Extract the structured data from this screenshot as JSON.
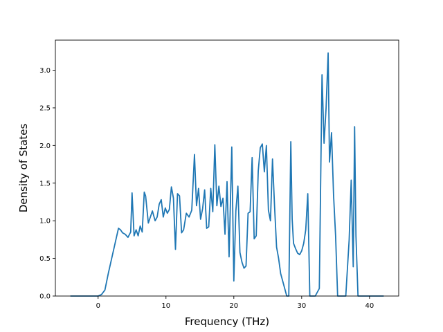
{
  "chart_data": {
    "type": "line",
    "title": "",
    "xlabel": "Frequency (THz)",
    "ylabel": "Density of States",
    "xlim": [
      -6.3,
      44.3
    ],
    "ylim": [
      0.0,
      3.4
    ],
    "xticks": [
      0,
      10,
      20,
      30,
      40
    ],
    "xtick_labels": [
      "0",
      "10",
      "20",
      "30",
      "40"
    ],
    "yticks": [
      0.0,
      0.5,
      1.0,
      1.5,
      2.0,
      2.5,
      3.0
    ],
    "ytick_labels": [
      "0.0",
      "0.5",
      "1.0",
      "1.5",
      "2.0",
      "2.5",
      "3.0"
    ],
    "grid": false,
    "line_color": "#1f77b4",
    "series": [
      {
        "x": [
          -4.0,
          0.0,
          0.5,
          1.0,
          1.5,
          2.0,
          2.5,
          3.0,
          3.3,
          3.6,
          4.0,
          4.4,
          4.8,
          5.0,
          5.3,
          5.6,
          5.9,
          6.2,
          6.5,
          6.8,
          7.0,
          7.4,
          7.7,
          8.0,
          8.4,
          8.7,
          9.0,
          9.3,
          9.6,
          9.9,
          10.2,
          10.5,
          10.8,
          11.1,
          11.4,
          11.7,
          12.0,
          12.3,
          12.6,
          13.0,
          13.4,
          13.8,
          14.2,
          14.5,
          14.8,
          15.1,
          15.4,
          15.7,
          16.0,
          16.3,
          16.6,
          16.9,
          17.2,
          17.5,
          17.8,
          18.1,
          18.4,
          18.7,
          19.0,
          19.3,
          19.7,
          20.0,
          20.3,
          20.6,
          20.9,
          21.2,
          21.5,
          21.8,
          22.1,
          22.4,
          22.7,
          23.0,
          23.3,
          23.6,
          23.9,
          24.2,
          24.5,
          24.8,
          25.1,
          25.4,
          25.7,
          26.0,
          26.3,
          26.6,
          26.9,
          27.2,
          27.5,
          27.8,
          28.1,
          28.4,
          28.6,
          28.8,
          29.1,
          29.4,
          29.7,
          30.0,
          30.3,
          30.6,
          30.9,
          31.2,
          31.4,
          31.6,
          32.0,
          32.6,
          33.0,
          33.3,
          33.6,
          33.9,
          34.1,
          34.4,
          34.7,
          35.0,
          35.3,
          35.7,
          36.0,
          36.5,
          37.0,
          37.3,
          37.6,
          37.8,
          38.0,
          38.3,
          38.6,
          39.0,
          42.0
        ],
        "y": [
          0.0,
          0.0,
          0.02,
          0.08,
          0.3,
          0.5,
          0.7,
          0.9,
          0.88,
          0.84,
          0.82,
          0.78,
          0.85,
          1.37,
          0.8,
          0.88,
          0.8,
          0.93,
          0.85,
          1.38,
          1.33,
          0.97,
          1.05,
          1.13,
          1.0,
          1.05,
          1.22,
          1.28,
          1.05,
          1.17,
          1.1,
          1.15,
          1.45,
          1.3,
          0.62,
          1.36,
          1.33,
          0.84,
          0.88,
          1.1,
          1.05,
          1.14,
          1.88,
          1.2,
          1.43,
          1.02,
          1.16,
          1.41,
          0.9,
          0.92,
          1.43,
          1.12,
          2.01,
          1.2,
          1.46,
          1.19,
          1.3,
          0.82,
          1.52,
          0.52,
          1.98,
          0.2,
          1.13,
          1.46,
          0.58,
          0.45,
          0.37,
          0.4,
          1.1,
          1.12,
          1.84,
          0.76,
          0.8,
          1.66,
          1.97,
          2.02,
          1.65,
          2.0,
          1.14,
          1.0,
          1.82,
          1.2,
          0.65,
          0.5,
          0.3,
          0.2,
          0.1,
          0.0,
          0.0,
          2.05,
          1.02,
          0.7,
          0.63,
          0.57,
          0.55,
          0.6,
          0.7,
          0.88,
          1.36,
          0.0,
          0.0,
          0.0,
          0.0,
          0.1,
          2.94,
          2.03,
          2.5,
          3.23,
          1.78,
          2.17,
          1.34,
          0.8,
          0.0,
          0.0,
          0.0,
          0.0,
          0.75,
          1.54,
          0.39,
          2.25,
          0.8,
          0.0,
          0.0,
          0.0,
          0.0
        ]
      }
    ]
  }
}
